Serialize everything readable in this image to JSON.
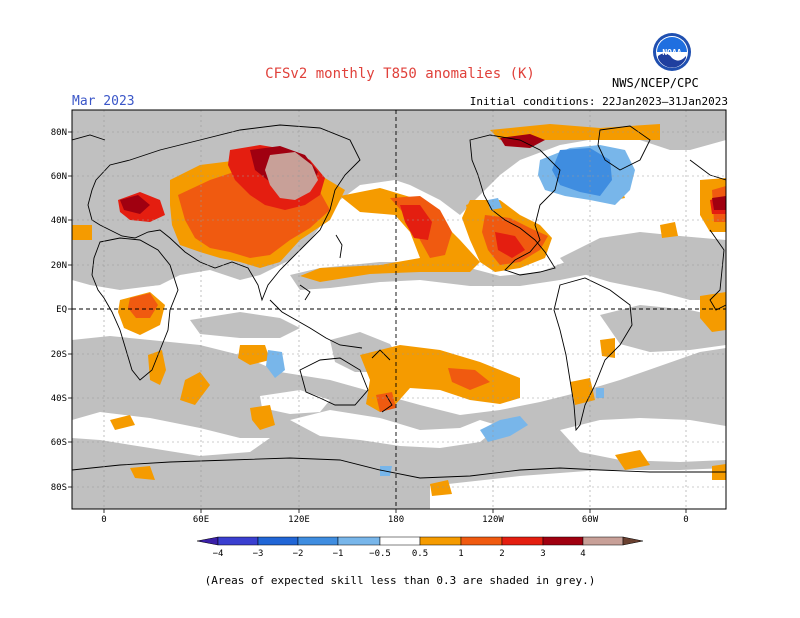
{
  "header": {
    "title": "CFSv2 monthly T850 anomalies (K)",
    "month": "Mar 2023",
    "initial_conditions": "Initial conditions: 22Jan2023–31Jan2023",
    "agency": "NWS/NCEP/CPC",
    "logo_text": "NOAA"
  },
  "map": {
    "lat_labels": [
      "80N",
      "60N",
      "40N",
      "20N",
      "EQ",
      "20S",
      "40S",
      "60S",
      "80S"
    ],
    "lon_labels": [
      "0",
      "60E",
      "120E",
      "180",
      "120W",
      "60W",
      "0"
    ]
  },
  "colorbar": {
    "labels": [
      "−4",
      "−3",
      "−2",
      "−1",
      "−0.5",
      "0.5",
      "1",
      "2",
      "3",
      "4"
    ],
    "colors": [
      "#3b1fa8",
      "#3a3fd0",
      "#2166d6",
      "#3f8de0",
      "#78b6ea",
      "#ffffff",
      "#f59b00",
      "#f05a10",
      "#e41e10",
      "#a00010",
      "#c8a098",
      "#6a4030"
    ]
  },
  "legend_note": "(Areas of expected skill less than 0.3 are shaded in grey.)",
  "colors": {
    "grey_skill": "#c0c0c0",
    "orange": "#f59b00",
    "dark_orange": "#f05a10",
    "red": "#e41e10",
    "dark_red": "#a00010",
    "pink_brown": "#c8a098",
    "light_blue": "#78b6ea",
    "blue": "#3f8de0"
  }
}
